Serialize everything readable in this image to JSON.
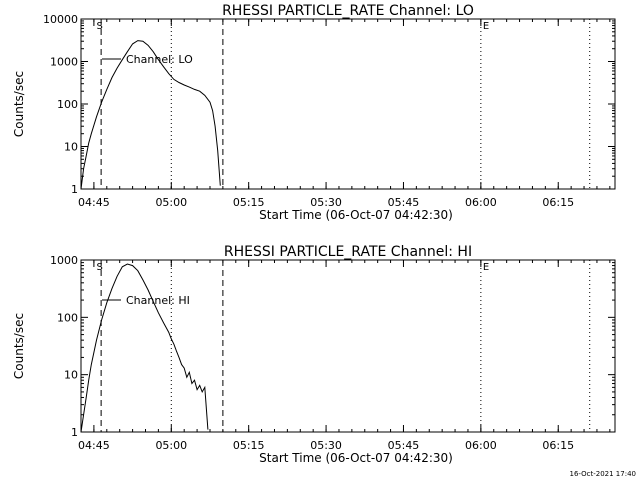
{
  "footer": {
    "timestamp": "16-Oct-2021 17:40"
  },
  "chart_data": [
    {
      "type": "line",
      "title": "RHESSI PARTICLE_RATE Channel: LO",
      "xlabel": "Start Time (06-Oct-07 04:42:30)",
      "ylabel": "Counts/sec",
      "y_scale": "log",
      "ylim": [
        1,
        10000
      ],
      "yticks": [
        1,
        10,
        100,
        1000,
        10000
      ],
      "ytick_labels": [
        "1",
        "10",
        "100",
        "1000",
        "10000"
      ],
      "xlim_minutes": [
        0,
        103.5
      ],
      "xticks_minutes": [
        2.5,
        17.5,
        32.5,
        47.5,
        62.5,
        77.5,
        92.5
      ],
      "xtick_labels": [
        "04:45",
        "05:00",
        "05:15",
        "05:30",
        "05:45",
        "06:00",
        "06:15"
      ],
      "legend": {
        "label": "Channel: LO",
        "placement": "top-left"
      },
      "markers": [
        {
          "type": "dashed",
          "minute": 3.9
        },
        {
          "type": "dashed",
          "minute": 27.5
        },
        {
          "type": "dotted",
          "minute": 17.5
        },
        {
          "type": "dotted",
          "minute": 77.5
        },
        {
          "type": "dotted",
          "minute": 98.6
        }
      ],
      "marker_labels": [
        {
          "text": "S",
          "minute": 3.0
        },
        {
          "text": "E",
          "minute": 77.9
        }
      ],
      "series": [
        {
          "name": "Channel: LO",
          "x_minutes": [
            0.0,
            0.5,
            1.0,
            1.5,
            2.0,
            3.0,
            4.0,
            5.0,
            6.0,
            7.0,
            8.0,
            9.0,
            10.0,
            11.0,
            12.0,
            13.0,
            14.0,
            15.0,
            16.0,
            17.0,
            18.0,
            19.0,
            20.0,
            21.0,
            22.0,
            23.0,
            24.0,
            25.0,
            25.5,
            26.0,
            26.5,
            27.0
          ],
          "y": [
            1.0,
            3.0,
            6.0,
            12.0,
            20.0,
            50.0,
            110.0,
            220.0,
            420.0,
            700.0,
            1100.0,
            1700.0,
            2600.0,
            3100.0,
            3000.0,
            2400.0,
            1700.0,
            1100.0,
            750.0,
            520.0,
            380.0,
            320.0,
            280.0,
            250.0,
            220.0,
            200.0,
            160.0,
            110.0,
            70.0,
            30.0,
            8.0,
            1.2
          ]
        }
      ]
    },
    {
      "type": "line",
      "title": "RHESSI PARTICLE_RATE Channel: HI",
      "xlabel": "Start Time (06-Oct-07 04:42:30)",
      "ylabel": "Counts/sec",
      "y_scale": "log",
      "ylim": [
        1,
        1000
      ],
      "yticks": [
        1,
        10,
        100,
        1000
      ],
      "ytick_labels": [
        "1",
        "10",
        "100",
        "1000"
      ],
      "xlim_minutes": [
        0,
        103.5
      ],
      "xticks_minutes": [
        2.5,
        17.5,
        32.5,
        47.5,
        62.5,
        77.5,
        92.5
      ],
      "xtick_labels": [
        "04:45",
        "05:00",
        "05:15",
        "05:30",
        "05:45",
        "06:00",
        "06:15"
      ],
      "legend": {
        "label": "Channel: HI",
        "placement": "top-left"
      },
      "markers": [
        {
          "type": "dashed",
          "minute": 3.9
        },
        {
          "type": "dashed",
          "minute": 27.5
        },
        {
          "type": "dotted",
          "minute": 17.5
        },
        {
          "type": "dotted",
          "minute": 77.5
        },
        {
          "type": "dotted",
          "minute": 98.6
        }
      ],
      "marker_labels": [
        {
          "text": "S",
          "minute": 3.0
        },
        {
          "text": "E",
          "minute": 77.9
        }
      ],
      "series": [
        {
          "name": "Channel: HI",
          "x_minutes": [
            0.0,
            0.5,
            1.0,
            1.5,
            2.0,
            3.0,
            4.0,
            5.0,
            6.0,
            7.0,
            8.0,
            9.0,
            10.0,
            11.0,
            12.0,
            13.0,
            14.0,
            15.0,
            16.0,
            17.0,
            17.5,
            18.0,
            18.5,
            19.0,
            19.5,
            20.0,
            20.5,
            21.0,
            21.5,
            22.0,
            22.5,
            23.0,
            23.5,
            24.0,
            24.3,
            24.6
          ],
          "y": [
            1.0,
            2.0,
            4.0,
            8.0,
            15.0,
            40.0,
            90.0,
            180.0,
            320.0,
            520.0,
            760.0,
            850.0,
            800.0,
            650.0,
            450.0,
            300.0,
            190.0,
            120.0,
            80.0,
            55.0,
            42.0,
            34.0,
            26.0,
            20.0,
            15.0,
            13.0,
            9.0,
            11.0,
            7.0,
            8.0,
            5.5,
            6.5,
            5.0,
            6.0,
            2.5,
            1.1
          ]
        }
      ]
    }
  ]
}
